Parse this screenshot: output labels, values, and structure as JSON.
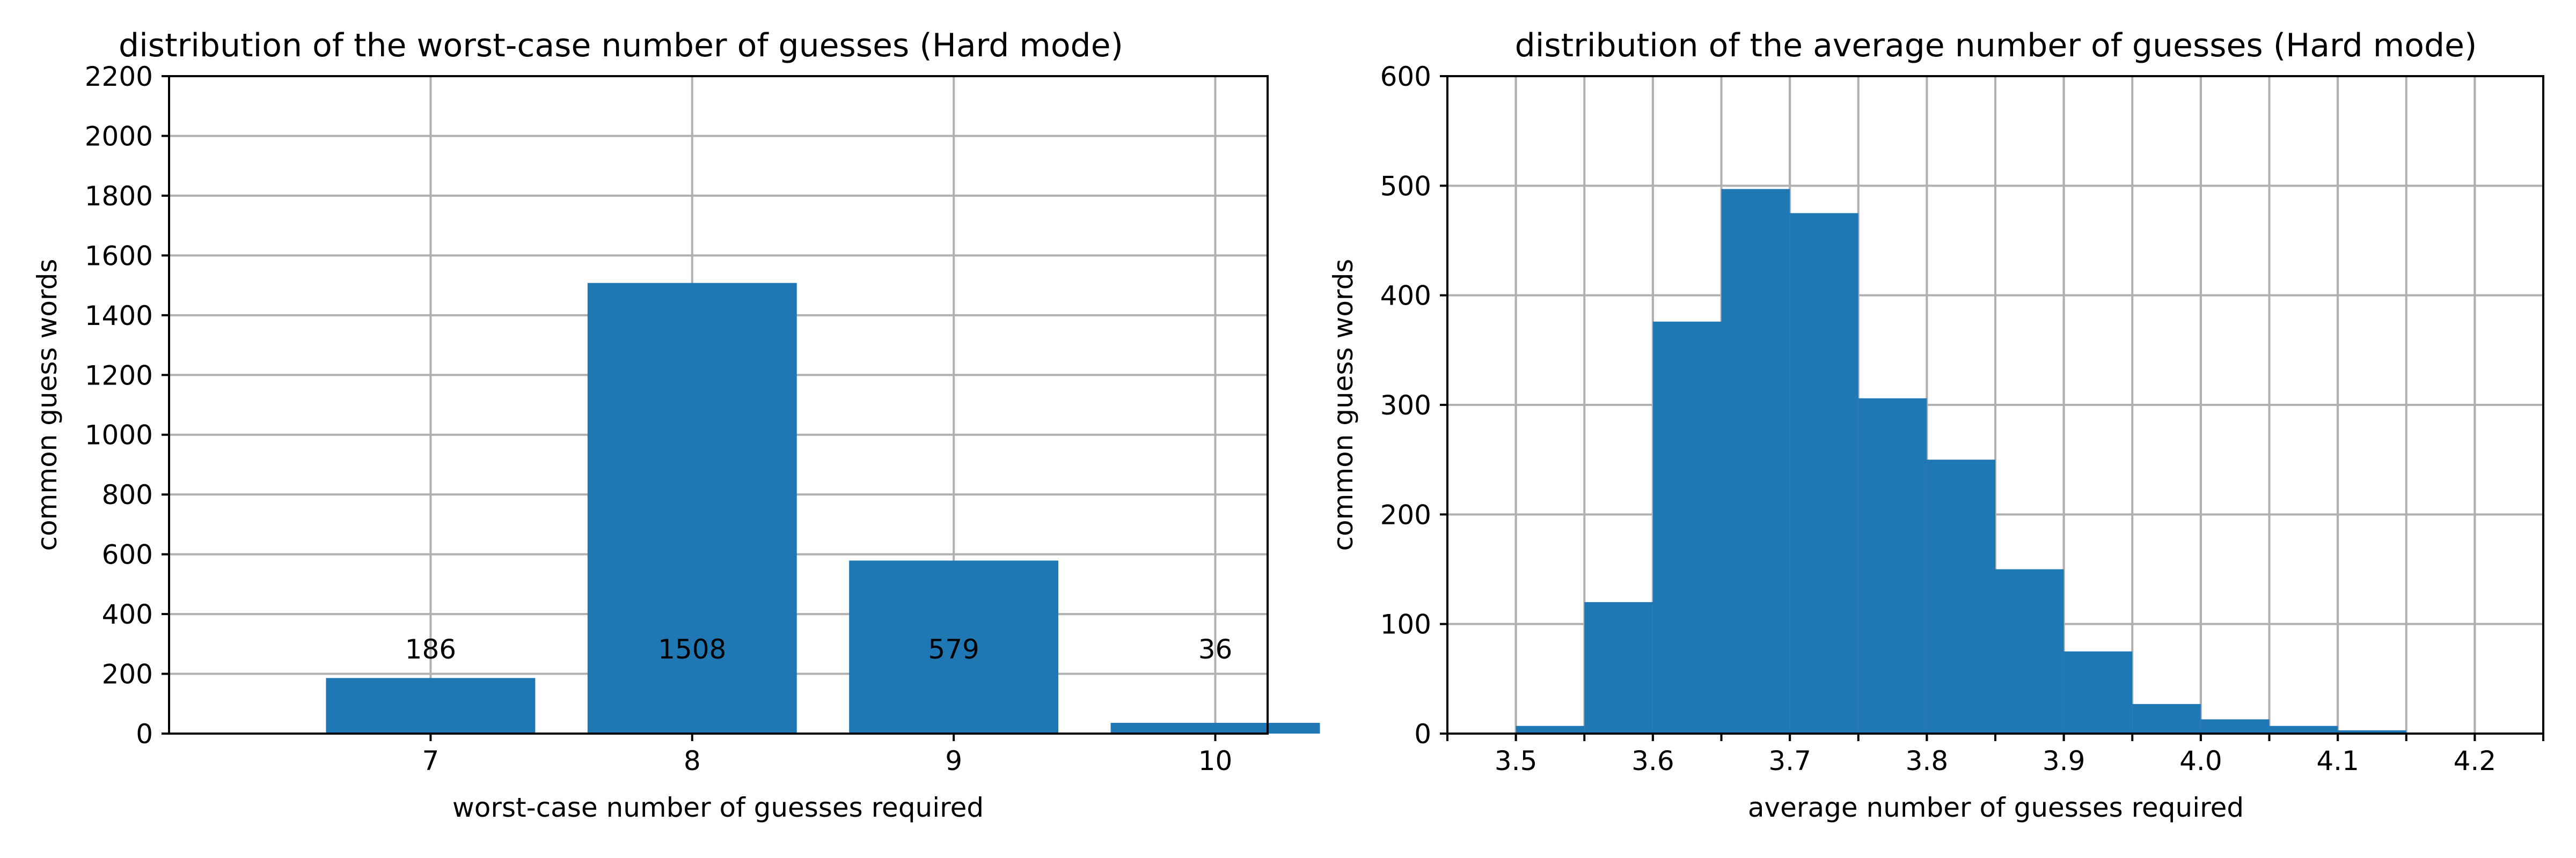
{
  "chart_data": [
    {
      "type": "bar",
      "title": "distribution of the worst-case number of guesses (Hard mode)",
      "xlabel": "worst-case number of guesses required",
      "ylabel": "common guess words",
      "categories": [
        "7",
        "8",
        "9",
        "10"
      ],
      "values": [
        186,
        1508,
        579,
        36
      ],
      "data_labels": [
        "186",
        "1508",
        "579",
        "36"
      ],
      "ylim": [
        0,
        2200
      ],
      "yticks": [
        0,
        200,
        400,
        600,
        800,
        1000,
        1200,
        1400,
        1600,
        1800,
        2000,
        2200
      ],
      "grid": true,
      "color": "#1f77b4"
    },
    {
      "type": "bar",
      "title": "distribution of the average number of guesses (Hard mode)",
      "xlabel": "average number of guesses required",
      "ylabel": "common guess words",
      "bin_edges": [
        3.45,
        3.5,
        3.55,
        3.6,
        3.65,
        3.7,
        3.75,
        3.8,
        3.85,
        3.9,
        3.95,
        4.0,
        4.05,
        4.1,
        4.15,
        4.2,
        4.25
      ],
      "counts": [
        0,
        7,
        120,
        376,
        497,
        475,
        306,
        250,
        150,
        75,
        27,
        13,
        7,
        3,
        1,
        1
      ],
      "xlim": [
        3.45,
        4.25
      ],
      "xticks": [
        3.5,
        3.6,
        3.7,
        3.8,
        3.9,
        4.0,
        4.1,
        4.2
      ],
      "xtick_labels": [
        "3.5",
        "3.6",
        "3.7",
        "3.8",
        "3.9",
        "4.0",
        "4.1",
        "4.2"
      ],
      "ylim": [
        0,
        600
      ],
      "yticks": [
        0,
        100,
        200,
        300,
        400,
        500,
        600
      ],
      "grid": true,
      "color": "#1f77b4"
    }
  ]
}
